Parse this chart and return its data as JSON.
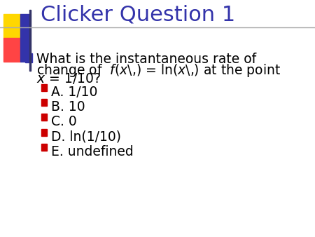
{
  "title": "Clicker Question 1",
  "title_color": "#3333AA",
  "title_fontsize": 22,
  "background_color": "#FFFFFF",
  "header_line_color": "#AAAAAA",
  "bullet_color": "#3333AA",
  "sub_bullet_color": "#CC0000",
  "main_bullet_text_line1": "What is the instantaneous rate of",
  "main_bullet_text_line2": "change of  $f$($x$\\,) = ln($x$\\,) at the point",
  "main_bullet_text_line3": "$x$ = 1/10?",
  "options": [
    "A. 1/10",
    "B. 10",
    "C. 0",
    "D. ln(1/10)",
    "E. undefined"
  ],
  "main_text_fontsize": 13.5,
  "option_fontsize": 13.5,
  "corner_square_yellow": "#FFD700",
  "corner_square_red": "#FF4444",
  "corner_square_blue": "#3333AA",
  "corner_line_color": "#333366"
}
